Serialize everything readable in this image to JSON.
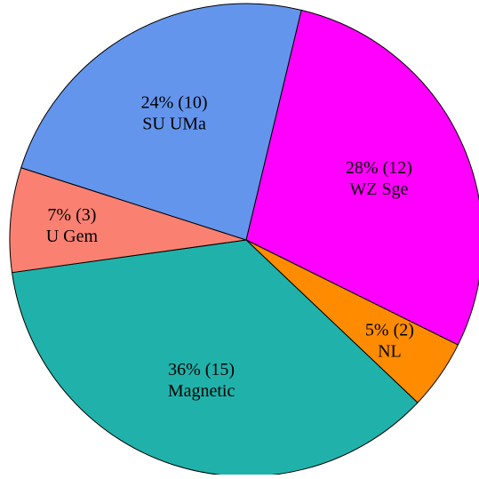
{
  "chart_data": {
    "type": "pie",
    "categories": [
      "WZ Sge",
      "NL",
      "Magnetic",
      "U Gem",
      "SU UMa"
    ],
    "values": [
      12,
      2,
      15,
      3,
      10
    ],
    "labels": [
      [
        "28% (12)",
        "WZ Sge"
      ],
      [
        "5% (2)",
        "NL"
      ],
      [
        "36% (15)",
        "Magnetic"
      ],
      [
        "7% (3)",
        "U Gem"
      ],
      [
        "24% (10)",
        "SU UMa"
      ]
    ],
    "colors": [
      "#ff00ff",
      "#ff8c00",
      "#20b2aa",
      "#fa8072",
      "#6495ed"
    ],
    "start_angle_deg": -76.5,
    "direction": "clockwise"
  }
}
